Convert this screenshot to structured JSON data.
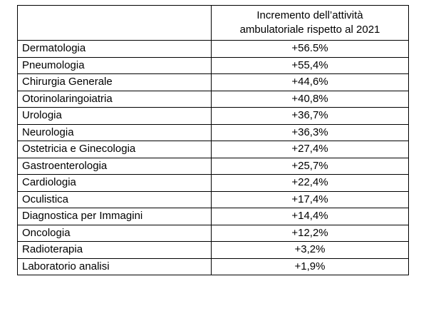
{
  "table": {
    "header": {
      "first_column": "",
      "second_column_line1": "Incremento dell’attività",
      "second_column_line2": "ambulatoriale rispetto al 2021"
    },
    "rows": [
      {
        "specialty": "Dermatologia",
        "increment": "+56.5%"
      },
      {
        "specialty": "Pneumologia",
        "increment": "+55,4%"
      },
      {
        "specialty": "Chirurgia Generale",
        "increment": "+44,6%"
      },
      {
        "specialty": "Otorinolaringoiatria",
        "increment": "+40,8%"
      },
      {
        "specialty": "Urologia",
        "increment": "+36,7%"
      },
      {
        "specialty": "Neurologia",
        "increment": "+36,3%"
      },
      {
        "specialty": "Ostetricia e Ginecologia",
        "increment": "+27,4%"
      },
      {
        "specialty": "Gastroenterologia",
        "increment": "+25,7%"
      },
      {
        "specialty": "Cardiologia",
        "increment": "+22,4%"
      },
      {
        "specialty": "Oculistica",
        "increment": "+17,4%"
      },
      {
        "specialty": "Diagnostica per Immagini",
        "increment": "+14,4%"
      },
      {
        "specialty": "Oncologia",
        "increment": "+12,2%"
      },
      {
        "specialty": "Radioterapia",
        "increment": "+3,2%"
      },
      {
        "specialty": "Laboratorio analisi",
        "increment": "+1,9%"
      }
    ]
  }
}
